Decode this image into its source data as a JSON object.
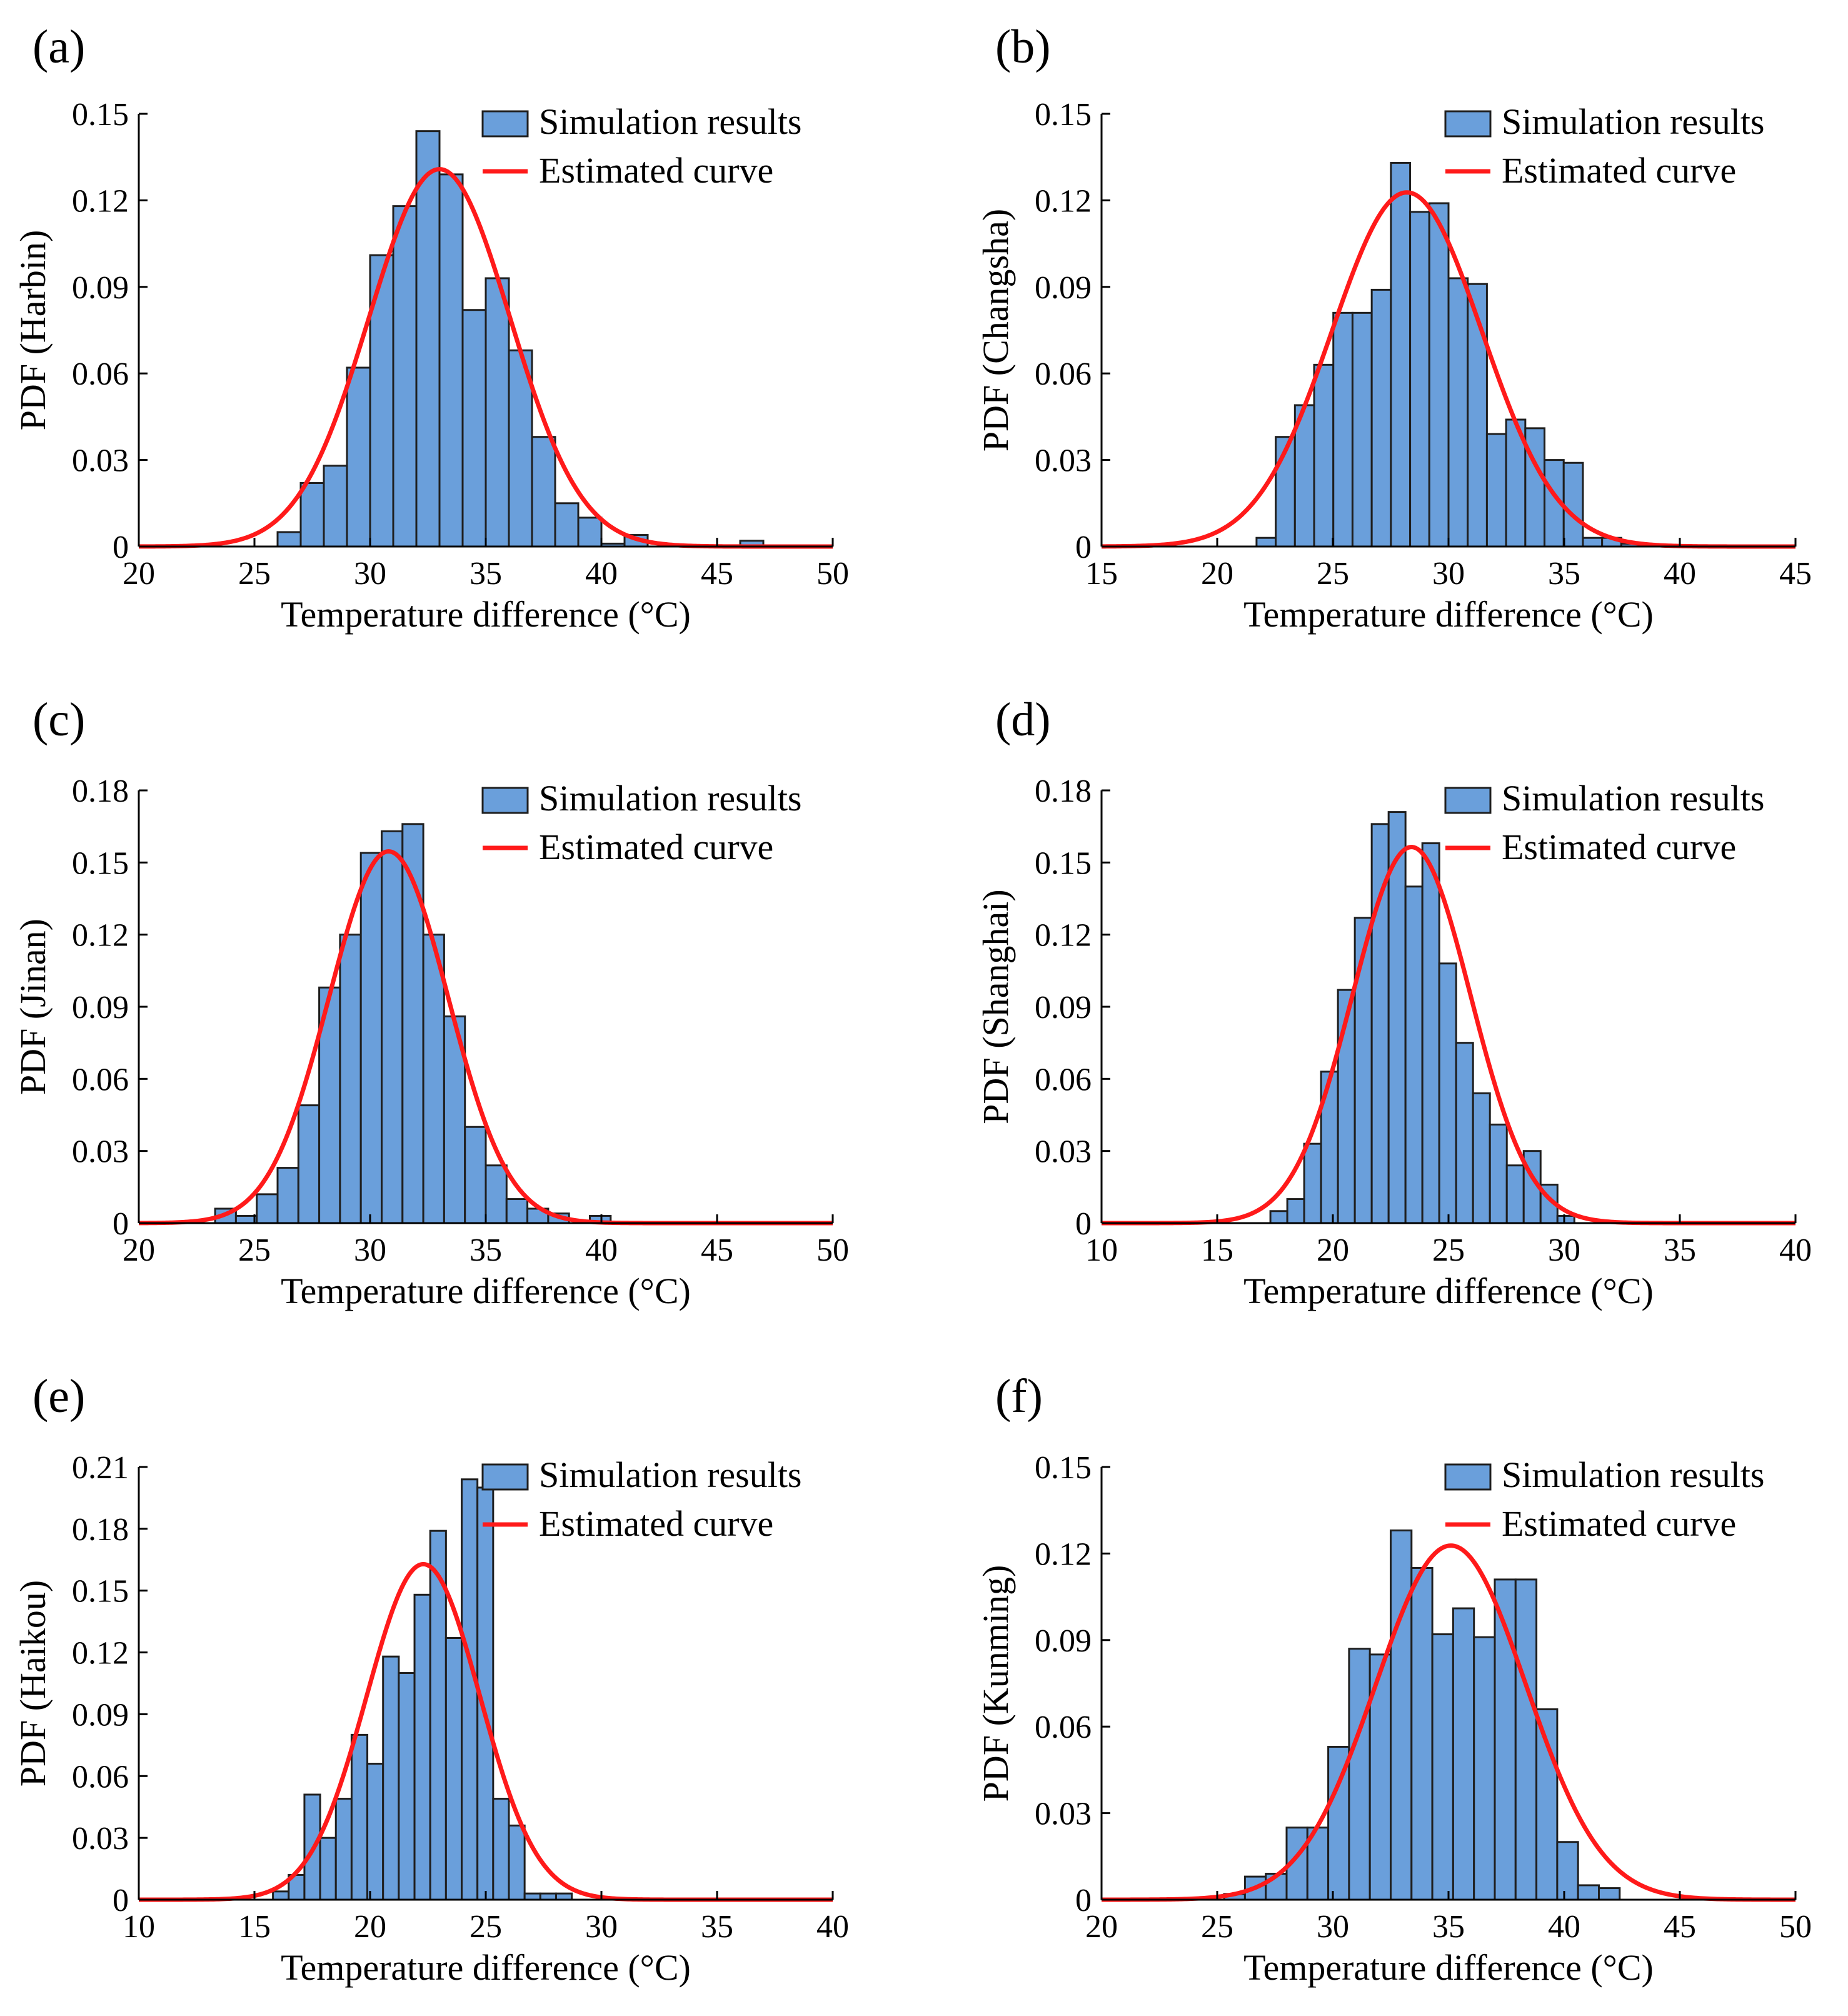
{
  "figure": {
    "colors": {
      "bar_fill": "#6a9fdb",
      "bar_edge": "#1f1f1f",
      "curve": "#ff1a1a",
      "axis": "#000000"
    }
  },
  "chart_data": [
    {
      "panel": "(a)",
      "type": "bar",
      "xlabel": "Temperature difference (°C)",
      "ylabel": "PDF (Harbin)",
      "xlim": [
        20,
        50
      ],
      "ylim": [
        0,
        0.15
      ],
      "xticks": [
        20,
        25,
        30,
        35,
        40,
        45,
        50
      ],
      "xtick_labels": [
        "20",
        "25",
        "30",
        "35",
        "40",
        "45",
        "50"
      ],
      "yticks": [
        0,
        0.03,
        0.06,
        0.09,
        0.12,
        0.15
      ],
      "ytick_labels": [
        "0",
        "0.03",
        "0.06",
        "0.09",
        "0.12",
        "0.15"
      ],
      "legend": [
        "Simulation results",
        "Estimated curve"
      ],
      "legend_position": "top-right",
      "bin_start": 26,
      "bin_width": 1.0,
      "values": [
        0.005,
        0.022,
        0.028,
        0.062,
        0.101,
        0.118,
        0.144,
        0.129,
        0.082,
        0.093,
        0.068,
        0.038,
        0.015,
        0.01,
        0.001,
        0.004,
        0.0,
        0.0,
        0.0,
        0.0,
        0.002
      ],
      "curve": {
        "mu": 33.0,
        "sigma": 3.05
      }
    },
    {
      "panel": "(b)",
      "type": "bar",
      "xlabel": "Temperature difference (°C)",
      "ylabel": "PDF (Changsha)",
      "xlim": [
        15,
        45
      ],
      "ylim": [
        0,
        0.15
      ],
      "xticks": [
        15,
        20,
        25,
        30,
        35,
        40,
        45
      ],
      "xtick_labels": [
        "15",
        "20",
        "25",
        "30",
        "35",
        "40",
        "45"
      ],
      "yticks": [
        0,
        0.03,
        0.06,
        0.09,
        0.12,
        0.15
      ],
      "ytick_labels": [
        "0",
        "0.03",
        "0.06",
        "0.09",
        "0.12",
        "0.15"
      ],
      "legend": [
        "Simulation results",
        "Estimated curve"
      ],
      "legend_position": "top-right",
      "bin_start": 21.7,
      "bin_width": 0.83,
      "values": [
        0.003,
        0.038,
        0.049,
        0.063,
        0.081,
        0.081,
        0.089,
        0.133,
        0.116,
        0.119,
        0.093,
        0.091,
        0.039,
        0.044,
        0.041,
        0.03,
        0.029,
        0.003,
        0.003,
        0.001
      ],
      "curve": {
        "mu": 28.2,
        "sigma": 3.25
      }
    },
    {
      "panel": "(c)",
      "type": "bar",
      "xlabel": "Temperature difference (°C)",
      "ylabel": "PDF (Jinan)",
      "xlim": [
        20,
        50
      ],
      "ylim": [
        0,
        0.18
      ],
      "xticks": [
        20,
        25,
        30,
        35,
        40,
        45,
        50
      ],
      "xtick_labels": [
        "20",
        "25",
        "30",
        "35",
        "40",
        "45",
        "50"
      ],
      "yticks": [
        0,
        0.03,
        0.06,
        0.09,
        0.12,
        0.15,
        0.18
      ],
      "ytick_labels": [
        "0",
        "0.03",
        "0.06",
        "0.09",
        "0.12",
        "0.15",
        "0.18"
      ],
      "legend": [
        "Simulation results",
        "Estimated curve"
      ],
      "legend_position": "top-right",
      "bin_start": 23.3,
      "bin_width": 0.9,
      "values": [
        0.006,
        0.003,
        0.012,
        0.023,
        0.049,
        0.098,
        0.12,
        0.154,
        0.163,
        0.166,
        0.12,
        0.086,
        0.04,
        0.024,
        0.01,
        0.006,
        0.004,
        0.0,
        0.003,
        0.0,
        0.0
      ],
      "curve": {
        "mu": 30.8,
        "sigma": 2.58
      }
    },
    {
      "panel": "(d)",
      "type": "bar",
      "xlabel": "Temperature difference (°C)",
      "ylabel": "PDF (Shanghai)",
      "xlim": [
        10,
        40
      ],
      "ylim": [
        0,
        0.18
      ],
      "xticks": [
        10,
        15,
        20,
        25,
        30,
        35,
        40
      ],
      "xtick_labels": [
        "10",
        "15",
        "20",
        "25",
        "30",
        "35",
        "40"
      ],
      "yticks": [
        0,
        0.03,
        0.06,
        0.09,
        0.12,
        0.15,
        0.18
      ],
      "ytick_labels": [
        "0",
        "0.03",
        "0.06",
        "0.09",
        "0.12",
        "0.15",
        "0.18"
      ],
      "legend": [
        "Simulation results",
        "Estimated curve"
      ],
      "legend_position": "top-right",
      "bin_start": 17.3,
      "bin_width": 0.73,
      "values": [
        0.005,
        0.01,
        0.033,
        0.063,
        0.097,
        0.127,
        0.166,
        0.171,
        0.14,
        0.158,
        0.108,
        0.075,
        0.054,
        0.041,
        0.024,
        0.03,
        0.016,
        0.003
      ],
      "curve": {
        "mu": 23.4,
        "sigma": 2.55
      }
    },
    {
      "panel": "(e)",
      "type": "bar",
      "xlabel": "Temperature difference (°C)",
      "ylabel": "PDF (Haikou)",
      "xlim": [
        10,
        40
      ],
      "ylim": [
        0,
        0.21
      ],
      "xticks": [
        10,
        15,
        20,
        25,
        30,
        35,
        40
      ],
      "xtick_labels": [
        "10",
        "15",
        "20",
        "25",
        "30",
        "35",
        "40"
      ],
      "yticks": [
        0,
        0.03,
        0.06,
        0.09,
        0.12,
        0.15,
        0.18,
        0.21
      ],
      "ytick_labels": [
        "0",
        "0.03",
        "0.06",
        "0.09",
        "0.12",
        "0.15",
        "0.18",
        "0.21"
      ],
      "legend": [
        "Simulation results",
        "Estimated curve"
      ],
      "legend_position": "top-right",
      "bin_start": 15.8,
      "bin_width": 0.68,
      "values": [
        0.004,
        0.012,
        0.051,
        0.03,
        0.049,
        0.08,
        0.066,
        0.118,
        0.11,
        0.148,
        0.179,
        0.127,
        0.204,
        0.2,
        0.049,
        0.036,
        0.003,
        0.003,
        0.003
      ],
      "curve": {
        "mu": 22.3,
        "sigma": 2.45
      }
    },
    {
      "panel": "(f)",
      "type": "bar",
      "xlabel": "Temperature difference (°C)",
      "ylabel": "PDF (Kunming)",
      "xlim": [
        20,
        50
      ],
      "ylim": [
        0,
        0.15
      ],
      "xticks": [
        20,
        25,
        30,
        35,
        40,
        45,
        50
      ],
      "xtick_labels": [
        "20",
        "25",
        "30",
        "35",
        "40",
        "45",
        "50"
      ],
      "yticks": [
        0,
        0.03,
        0.06,
        0.09,
        0.12,
        0.15
      ],
      "ytick_labels": [
        "0",
        "0.03",
        "0.06",
        "0.09",
        "0.12",
        "0.15"
      ],
      "legend": [
        "Simulation results",
        "Estimated curve"
      ],
      "legend_position": "top-right",
      "bin_start": 25.3,
      "bin_width": 0.9,
      "values": [
        0.002,
        0.008,
        0.009,
        0.025,
        0.025,
        0.053,
        0.087,
        0.085,
        0.128,
        0.115,
        0.092,
        0.101,
        0.091,
        0.111,
        0.111,
        0.066,
        0.02,
        0.005,
        0.004
      ],
      "curve": {
        "mu": 35.1,
        "sigma": 3.25
      }
    }
  ]
}
